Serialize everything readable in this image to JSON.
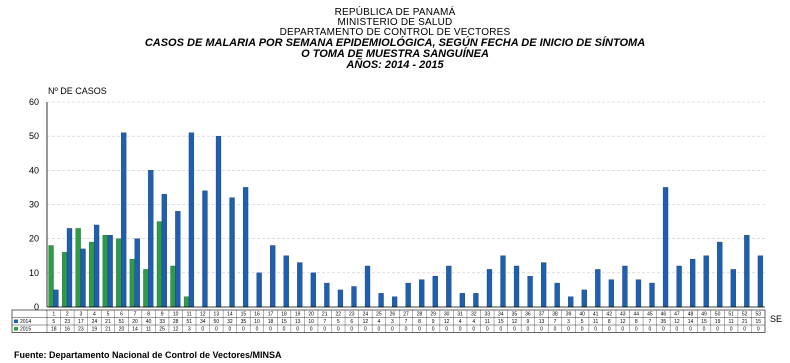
{
  "header": {
    "line1": "REPÚBLICA DE PANAMÁ",
    "line2": "MINISTERIO DE SALUD",
    "line3": "DEPARTAMENTO DE CONTROL DE VECTORES",
    "title1": "CASOS DE MALARIA POR SEMANA EPIDEMIOLÓGICA, SEGÚN FECHA DE INICIO DE SÍNTOMA",
    "title2": "O TOMA DE MUESTRA SANGUÍNEA",
    "title3": "AÑOS: 2014 - 2015"
  },
  "source": "Fuente: Departamento Nacional de Control de Vectores/MINSA",
  "colors": {
    "s2014": "#1f5fae",
    "s2015": "#2f9a47",
    "grid": "#c8c8c8"
  },
  "chart_data": {
    "type": "bar",
    "title": "CASOS DE MALARIA POR SEMANA EPIDEMIOLÓGICA, SEGÚN FECHA DE INICIO DE SÍNTOMA O TOMA DE MUESTRA SANGUÍNEA AÑOS: 2014 - 2015",
    "ylabel": "Nº DE CASOS",
    "xlabel": "SE",
    "ylim": [
      0,
      60
    ],
    "yticks": [
      0,
      10,
      20,
      30,
      40,
      50,
      60
    ],
    "grid": true,
    "legend": "table-left",
    "categories": [
      "1",
      "2",
      "3",
      "4",
      "5",
      "6",
      "7",
      "8",
      "9",
      "10",
      "11",
      "12",
      "13",
      "14",
      "15",
      "16",
      "17",
      "18",
      "19",
      "20",
      "21",
      "22",
      "23",
      "24",
      "25",
      "26",
      "27",
      "28",
      "29",
      "30",
      "31",
      "32",
      "33",
      "34",
      "35",
      "36",
      "37",
      "38",
      "39",
      "40",
      "41",
      "42",
      "43",
      "44",
      "45",
      "46",
      "47",
      "48",
      "49",
      "50",
      "51",
      "52",
      "53"
    ],
    "series": [
      {
        "name": "2014",
        "values": [
          5,
          23,
          17,
          24,
          21,
          51,
          20,
          40,
          33,
          28,
          51,
          34,
          50,
          32,
          35,
          10,
          18,
          15,
          13,
          10,
          7,
          5,
          6,
          12,
          4,
          3,
          7,
          8,
          9,
          12,
          4,
          4,
          11,
          15,
          12,
          9,
          13,
          7,
          3,
          5,
          11,
          8,
          12,
          8,
          7,
          35,
          12,
          14,
          15,
          19,
          11,
          21,
          15
        ]
      },
      {
        "name": "2015",
        "values": [
          18,
          16,
          23,
          19,
          21,
          20,
          14,
          11,
          25,
          12,
          3,
          0,
          0,
          0,
          0,
          0,
          0,
          0,
          0,
          0,
          0,
          0,
          0,
          0,
          0,
          0,
          0,
          0,
          0,
          0,
          0,
          0,
          0,
          0,
          0,
          0,
          0,
          0,
          0,
          0,
          0,
          0,
          0,
          0,
          0,
          0,
          0,
          0,
          0,
          0,
          0,
          0,
          0
        ]
      }
    ]
  }
}
